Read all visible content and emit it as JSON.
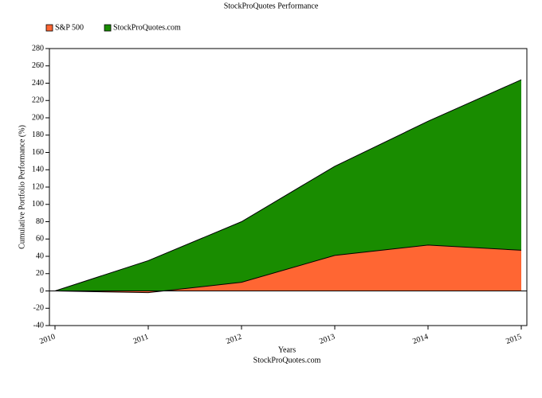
{
  "chart_data": {
    "type": "area",
    "title": "StockProQuotes Performance",
    "subtitle": "StockProQuotes.com",
    "x_label": "Years",
    "y_label": "Cumulative Portfolio Performance (%)",
    "categories": [
      "2010",
      "2011",
      "2012",
      "2013",
      "2014",
      "2015"
    ],
    "series": [
      {
        "name": "S&P 500",
        "color": "#ff6633",
        "values": [
          0,
          -2,
          10,
          41,
          53,
          47
        ]
      },
      {
        "name": "StockProQuotes.com",
        "color": "#198c00",
        "values": [
          0,
          35,
          80,
          144,
          196,
          244
        ]
      }
    ],
    "ylim": [
      -40,
      280
    ],
    "yticks": [
      -40,
      -20,
      0,
      20,
      40,
      60,
      80,
      100,
      120,
      140,
      160,
      180,
      200,
      220,
      240,
      260,
      280
    ],
    "legend": "top-left"
  }
}
